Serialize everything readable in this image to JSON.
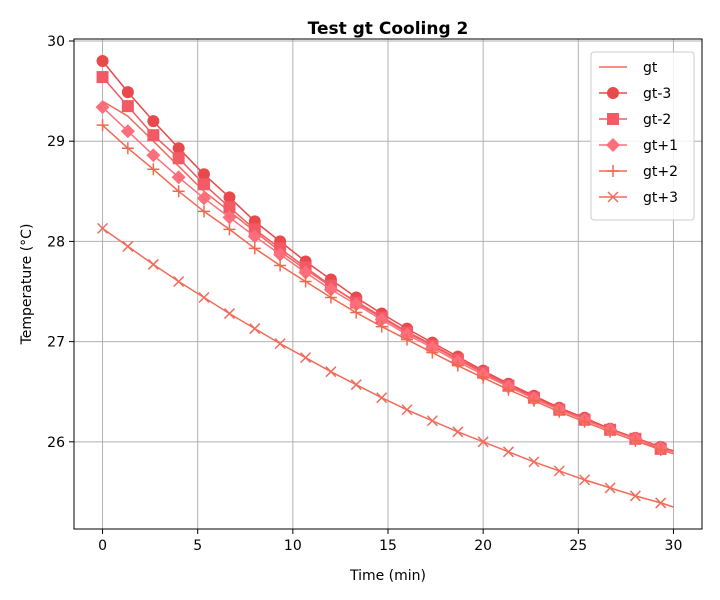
{
  "chart_data": {
    "type": "line",
    "title": "Test gt Cooling 2",
    "xlabel": "Time (min)",
    "ylabel": "Temperature (°C)",
    "xlim": [
      -1.5,
      31.5
    ],
    "ylim": [
      25.13,
      30.02
    ],
    "xticks": [
      0,
      5,
      10,
      15,
      20,
      25,
      30
    ],
    "yticks": [
      26,
      27,
      28,
      29,
      30
    ],
    "grid": true,
    "legend_position": "top-right",
    "colors": {
      "gt": "#f26b5b",
      "gt-3": "#e8494b",
      "gt-2": "#f25a66",
      "gt+1": "#ff6e7a",
      "gt+2": "#f2684f",
      "gt+3": "#f26b5b"
    },
    "x": [
      0,
      1.33,
      2.67,
      4.0,
      5.33,
      6.67,
      8.0,
      9.33,
      10.67,
      12.0,
      13.33,
      14.67,
      16.0,
      17.33,
      18.67,
      20.0,
      21.33,
      22.67,
      24.0,
      25.33,
      26.67,
      28.0,
      29.33,
      30.0
    ],
    "series": [
      {
        "name": "gt",
        "marker": "none",
        "values": [
          29.4,
          29.25,
          29.0,
          28.75,
          28.5,
          28.3,
          28.1,
          27.9,
          27.72,
          27.55,
          27.4,
          27.25,
          27.1,
          26.97,
          26.83,
          26.7,
          26.57,
          26.45,
          26.33,
          26.22,
          26.12,
          26.03,
          25.94,
          25.9
        ]
      },
      {
        "name": "gt-3",
        "marker": "circle",
        "values": [
          29.8,
          29.49,
          29.2,
          28.93,
          28.67,
          28.44,
          28.2,
          28.0,
          27.8,
          27.62,
          27.44,
          27.28,
          27.13,
          26.99,
          26.85,
          26.71,
          26.58,
          26.46,
          26.34,
          26.24,
          26.13,
          26.04,
          25.95,
          25.91
        ]
      },
      {
        "name": "gt-2",
        "marker": "square",
        "values": [
          29.64,
          29.35,
          29.06,
          28.83,
          28.57,
          28.34,
          28.12,
          27.93,
          27.74,
          27.56,
          27.39,
          27.24,
          27.09,
          26.96,
          26.82,
          26.69,
          26.56,
          26.44,
          26.32,
          26.22,
          26.12,
          26.03,
          25.93,
          25.9
        ]
      },
      {
        "name": "gt+1",
        "marker": "diamond",
        "values": [
          29.34,
          29.1,
          28.86,
          28.64,
          28.43,
          28.24,
          28.05,
          27.87,
          27.69,
          27.52,
          27.37,
          27.22,
          27.07,
          26.94,
          26.8,
          26.67,
          26.55,
          26.43,
          26.32,
          26.22,
          26.12,
          26.03,
          25.94,
          25.9
        ]
      },
      {
        "name": "gt+2",
        "marker": "plus",
        "values": [
          29.16,
          28.93,
          28.72,
          28.5,
          28.3,
          28.12,
          27.93,
          27.76,
          27.6,
          27.44,
          27.29,
          27.15,
          27.02,
          26.89,
          26.76,
          26.64,
          26.52,
          26.41,
          26.3,
          26.2,
          26.1,
          26.01,
          25.92,
          25.88
        ]
      },
      {
        "name": "gt+3",
        "marker": "x",
        "values": [
          28.13,
          27.95,
          27.77,
          27.6,
          27.44,
          27.28,
          27.13,
          26.98,
          26.84,
          26.7,
          26.57,
          26.44,
          26.32,
          26.21,
          26.1,
          26.0,
          25.9,
          25.8,
          25.71,
          25.62,
          25.54,
          25.46,
          25.39,
          25.35
        ]
      }
    ]
  }
}
